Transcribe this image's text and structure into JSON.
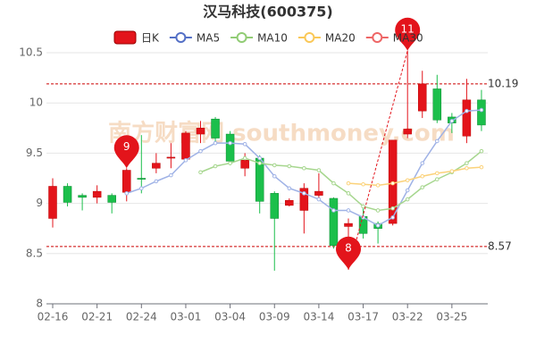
{
  "chart_data": {
    "type": "candlestick",
    "title": "汉马科技(600375)",
    "watermark": "南方财富网 southmoney.com",
    "categories": [
      "02-16",
      null,
      null,
      "02-21",
      null,
      null,
      "02-24",
      null,
      null,
      "03-01",
      null,
      null,
      "03-04",
      null,
      null,
      "03-09",
      null,
      null,
      "03-14",
      null,
      null,
      "03-17",
      null,
      null,
      "03-22",
      null,
      null,
      "03-25",
      null,
      null
    ],
    "series": [
      {
        "name": "日K",
        "color": "#e3141b",
        "down_color": "#1bbf4b",
        "open": [
          8.85,
          9.17,
          9.08,
          9.06,
          9.08,
          9.11,
          9.25,
          9.35,
          9.45,
          9.44,
          9.69,
          9.84,
          9.69,
          9.35,
          9.45,
          9.1,
          8.98,
          8.93,
          9.08,
          9.05,
          8.77,
          8.87,
          8.8,
          8.8,
          9.69,
          9.92,
          10.14,
          9.86,
          9.67,
          10.03
        ],
        "close": [
          9.17,
          9.01,
          9.06,
          9.12,
          9.01,
          9.33,
          9.24,
          9.4,
          9.46,
          9.7,
          9.75,
          9.65,
          9.42,
          9.43,
          9.02,
          8.85,
          9.03,
          9.15,
          9.12,
          8.58,
          8.8,
          8.7,
          8.75,
          9.63,
          9.74,
          10.19,
          9.83,
          9.8,
          10.03,
          9.78
        ],
        "high": [
          9.25,
          9.2,
          9.1,
          9.18,
          9.1,
          9.35,
          9.68,
          9.5,
          9.6,
          9.72,
          9.82,
          9.86,
          9.72,
          9.5,
          9.48,
          9.12,
          9.05,
          9.2,
          9.3,
          9.06,
          8.85,
          8.95,
          8.82,
          9.63,
          10.52,
          10.32,
          10.28,
          9.9,
          10.24,
          10.13
        ],
        "low": [
          8.76,
          8.97,
          8.93,
          9.0,
          8.9,
          9.02,
          9.1,
          9.3,
          9.35,
          9.42,
          9.6,
          9.6,
          9.38,
          9.27,
          8.9,
          8.33,
          8.97,
          8.7,
          9.03,
          8.55,
          8.34,
          8.65,
          8.6,
          8.78,
          9.65,
          9.85,
          9.8,
          9.7,
          9.6,
          9.72
        ]
      },
      {
        "name": "MA5",
        "color": "#9fb2e6",
        "icon_color": "#5470c6",
        "values": [
          null,
          null,
          null,
          null,
          null,
          9.1,
          9.15,
          9.22,
          9.28,
          9.43,
          9.52,
          9.6,
          9.6,
          9.59,
          9.45,
          9.27,
          9.15,
          9.1,
          9.04,
          8.93,
          8.93,
          8.86,
          8.78,
          8.86,
          9.13,
          9.4,
          9.62,
          9.82,
          9.92,
          9.93
        ]
      },
      {
        "name": "MA10",
        "color": "#a6d68e",
        "icon_color": "#91cc75",
        "values": [
          null,
          null,
          null,
          null,
          null,
          null,
          null,
          null,
          null,
          null,
          9.31,
          9.37,
          9.4,
          9.45,
          9.4,
          9.38,
          9.37,
          9.35,
          9.33,
          9.2,
          9.1,
          8.97,
          8.93,
          8.95,
          9.04,
          9.16,
          9.24,
          9.31,
          9.4,
          9.52
        ]
      },
      {
        "name": "MA20",
        "color": "#fbd27a",
        "icon_color": "#fac858",
        "values": [
          null,
          null,
          null,
          null,
          null,
          null,
          null,
          null,
          null,
          null,
          null,
          null,
          null,
          null,
          null,
          null,
          null,
          null,
          null,
          null,
          9.2,
          9.19,
          9.18,
          9.2,
          9.23,
          9.27,
          9.3,
          9.32,
          9.35,
          9.36
        ]
      },
      {
        "name": "MA30",
        "color": "#ee6666",
        "icon_color": "#ee6666",
        "values": [
          null,
          null,
          null,
          null,
          null,
          null,
          null,
          null,
          null,
          null,
          null,
          null,
          null,
          null,
          null,
          null,
          null,
          null,
          null,
          null,
          null,
          null,
          null,
          null,
          null,
          null,
          null,
          null,
          null,
          null
        ]
      }
    ],
    "reference_lines": [
      {
        "value": 10.19,
        "label": "10.19"
      },
      {
        "value": 8.57,
        "label": "8.57"
      }
    ],
    "annotations": [
      {
        "label": "9",
        "x": 5,
        "value": 9.35
      },
      {
        "label": "8",
        "x": 20,
        "value": 8.34
      },
      {
        "label": "11",
        "x": 24,
        "value": 10.52
      }
    ],
    "ylim": [
      8,
      10.5
    ],
    "yticks": [
      8,
      8.5,
      9,
      9.5,
      10,
      10.5
    ],
    "grid": true
  }
}
